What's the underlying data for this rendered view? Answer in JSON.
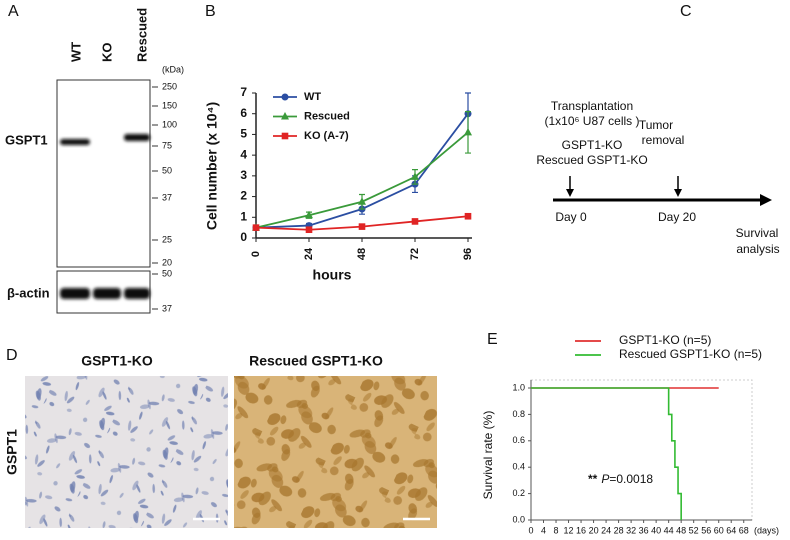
{
  "figure": {
    "panel_labels": [
      "A",
      "B",
      "C",
      "D",
      "E"
    ],
    "blot": {
      "lanes": [
        "WT",
        "KO",
        "Rescued"
      ],
      "unit": "(kDa)",
      "markers": [
        250,
        150,
        100,
        75,
        50,
        37,
        25,
        20
      ],
      "protein": "GSPT1",
      "loading_control": "β-actin",
      "loading_markers": [
        50,
        37
      ]
    },
    "schema": {
      "transplantation": "Transplantation",
      "cells": "(1x10⁶ U87 cells )",
      "groups": [
        "GSPT1-KO",
        "Rescued GSPT1-KO"
      ],
      "removal": [
        "Tumor",
        "removal"
      ],
      "days": [
        "Day 0",
        "Day 20"
      ],
      "endpoint": [
        "Survival",
        "analysis"
      ]
    },
    "ihc": {
      "groups": [
        "GSPT1-KO",
        "Rescued GSPT1-KO"
      ],
      "stain": "GSPT1"
    }
  },
  "chart_data": [
    {
      "type": "line",
      "x": [
        0,
        24,
        48,
        72,
        96
      ],
      "xlim": [
        0,
        96
      ],
      "xticks": [
        0,
        24,
        48,
        72,
        96
      ],
      "ylim": [
        0,
        7
      ],
      "yticks": [
        0,
        1,
        2,
        3,
        4,
        5,
        6,
        7
      ],
      "xlabel": "hours",
      "ylabel": "Cell number (x 10⁴)",
      "series": [
        {
          "name": "WT",
          "color": "#2b4ea2",
          "marker": "circle",
          "values": [
            0.5,
            0.6,
            1.4,
            2.6,
            6.0
          ],
          "errors": [
            0.05,
            0.1,
            0.25,
            0.4,
            1.0
          ]
        },
        {
          "name": "Rescued",
          "color": "#3a9a3a",
          "marker": "triangle",
          "values": [
            0.5,
            1.1,
            1.75,
            2.95,
            5.1
          ],
          "errors": [
            0.05,
            0.15,
            0.35,
            0.35,
            1.0
          ]
        },
        {
          "name": "KO (A-7)",
          "color": "#e02424",
          "marker": "square",
          "values": [
            0.5,
            0.4,
            0.55,
            0.8,
            1.05
          ],
          "errors": [
            0.05,
            0.05,
            0.05,
            0.05,
            0.1
          ]
        }
      ]
    },
    {
      "type": "step",
      "xlim": [
        0,
        70
      ],
      "xticks": [
        0,
        4,
        8,
        12,
        16,
        20,
        24,
        28,
        32,
        36,
        40,
        44,
        48,
        52,
        56,
        60,
        64,
        68
      ],
      "ylim": [
        0,
        1
      ],
      "yticks": [
        {
          "value": 0,
          "label": "0.0"
        },
        {
          "value": 0.2,
          "label": "0.2"
        },
        {
          "value": 0.4,
          "label": "0.4"
        },
        {
          "value": 0.6,
          "label": "0.6"
        },
        {
          "value": 0.8,
          "label": "0.8"
        },
        {
          "value": 1,
          "label": "1.0"
        }
      ],
      "xlabel": "(days)",
      "ylabel": "Survival rate (%)",
      "annotation": {
        "stars": "**",
        "stat": "P",
        "value": "=0.0018"
      },
      "series": [
        {
          "name": "GSPT1-KO (n=5)",
          "color": "#e03030",
          "x": [
            0,
            60
          ],
          "values": [
            1,
            1
          ]
        },
        {
          "name": "Rescued GSPT1-KO (n=5)",
          "color": "#33bb33",
          "x": [
            0,
            44,
            45,
            46,
            47,
            48
          ],
          "values": [
            1,
            0.8,
            0.6,
            0.4,
            0.2,
            0
          ]
        }
      ]
    }
  ]
}
